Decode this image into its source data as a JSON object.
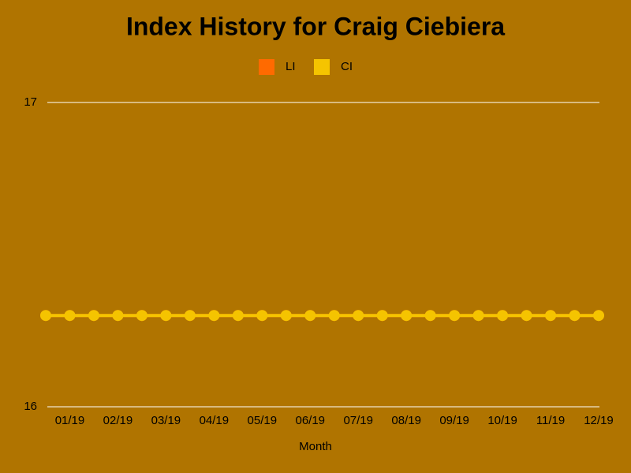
{
  "chart_data": {
    "type": "line",
    "title": "Index History for Craig Ciebiera",
    "x_label": "Month",
    "categories": [
      null,
      "01/19",
      null,
      "02/19",
      null,
      "03/19",
      null,
      "04/19",
      null,
      "05/19",
      null,
      "06/19",
      null,
      "07/19",
      null,
      "08/19",
      null,
      "09/19",
      null,
      "10/19",
      null,
      "11/19",
      null,
      "12/19"
    ],
    "series": [
      {
        "name": "LI",
        "color": "#ff6a00",
        "values": [
          16.3,
          16.3,
          16.3,
          16.3,
          16.3,
          16.3,
          16.3,
          16.3,
          16.3,
          16.3,
          16.3,
          16.3,
          16.3,
          16.3,
          16.3,
          16.3,
          16.3,
          16.3,
          16.3,
          16.3,
          16.3,
          16.3,
          16.3,
          16.3
        ]
      },
      {
        "name": "CI",
        "color": "#f5c400",
        "values": [
          16.3,
          16.3,
          16.3,
          16.3,
          16.3,
          16.3,
          16.3,
          16.3,
          16.3,
          16.3,
          16.3,
          16.3,
          16.3,
          16.3,
          16.3,
          16.3,
          16.3,
          16.3,
          16.3,
          16.3,
          16.3,
          16.3,
          16.3,
          16.3
        ]
      }
    ],
    "ylim": [
      16,
      17
    ],
    "yticks": [
      16,
      17
    ],
    "grid": true
  }
}
